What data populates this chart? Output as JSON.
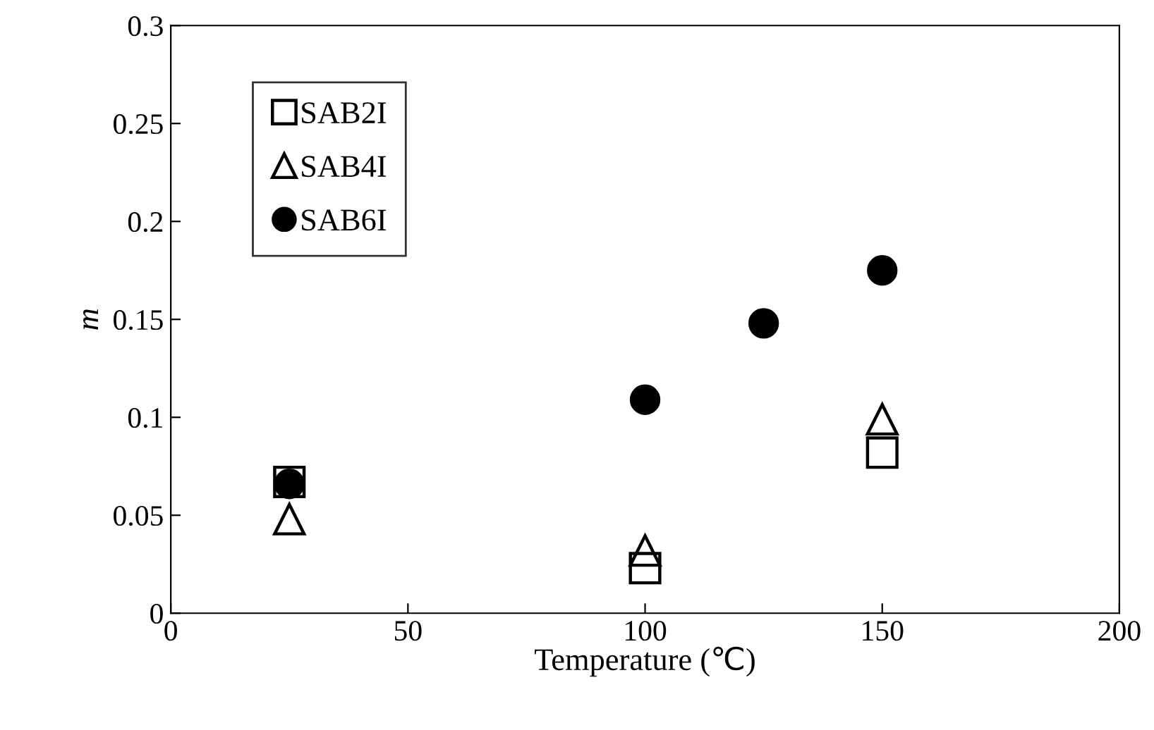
{
  "chart_data": {
    "type": "scatter",
    "xlabel": "Temperature (℃)",
    "ylabel": "m",
    "xlim": [
      0,
      200
    ],
    "xticks": [
      0,
      50,
      100,
      150,
      200
    ],
    "ylim": [
      0,
      0.3
    ],
    "yticks": [
      0,
      0.05,
      0.1,
      0.15,
      0.2,
      0.25,
      0.3
    ],
    "grid": false,
    "legend": "top left",
    "series": [
      {
        "name": "SAB2I",
        "color": "#000000",
        "marker": "square",
        "x": [
          25,
          100,
          150
        ],
        "values": [
          0.067,
          0.023,
          0.082
        ]
      },
      {
        "name": "SAB4I",
        "color": "#000000",
        "marker": "triangle",
        "x": [
          25,
          100,
          150
        ],
        "values": [
          0.048,
          0.032,
          0.099
        ]
      },
      {
        "name": "SAB6I",
        "color": "#000000",
        "marker": "circle",
        "x": [
          25,
          100,
          125,
          150
        ],
        "values": [
          0.066,
          0.109,
          0.148,
          0.175
        ]
      }
    ]
  }
}
